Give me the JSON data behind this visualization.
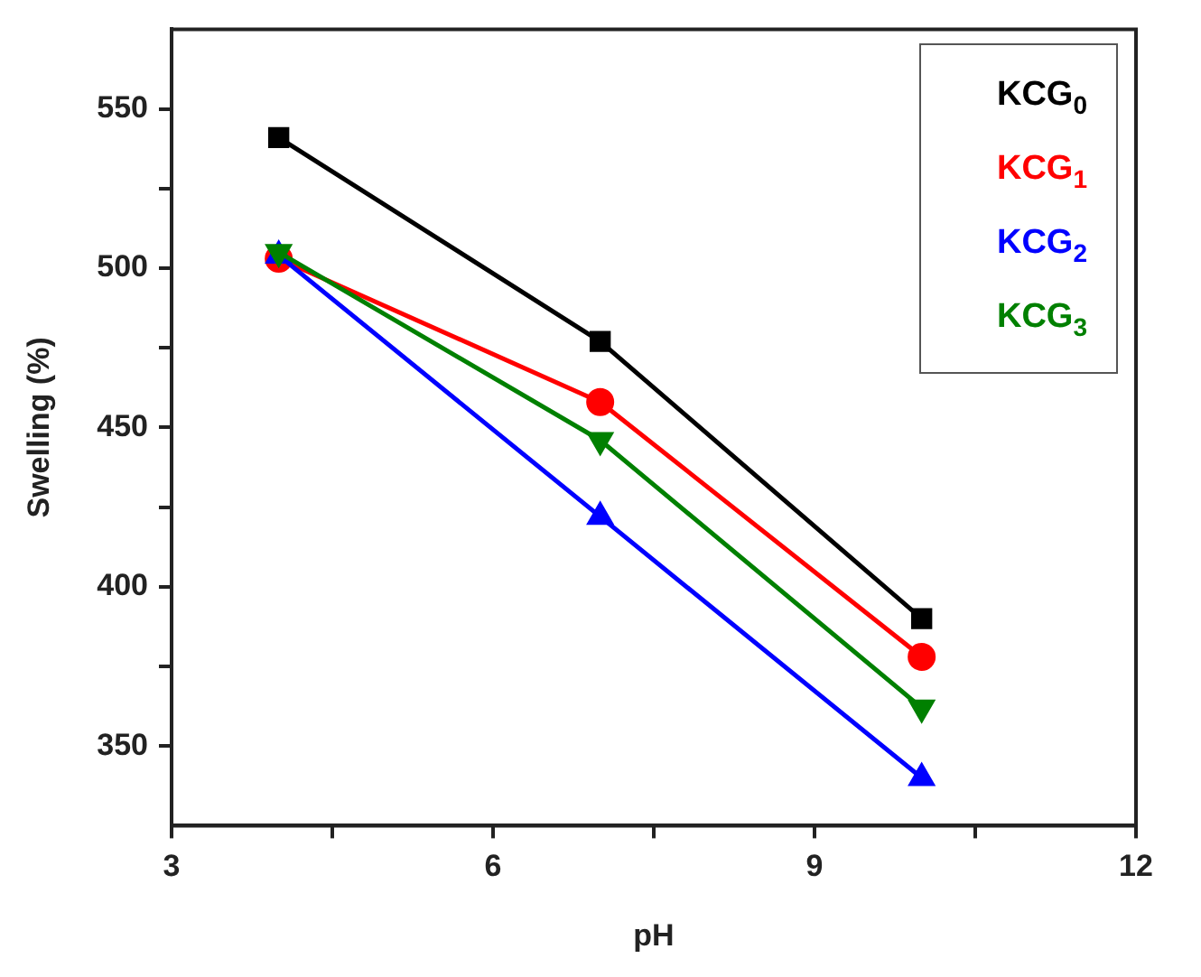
{
  "chart_data": {
    "type": "line",
    "xlabel": "pH",
    "ylabel": "Swelling (%)",
    "x": [
      4,
      7,
      10
    ],
    "series": [
      {
        "name": "KCG$_{0}$",
        "color": "#000000",
        "marker": "square",
        "values": [
          541,
          477,
          390
        ]
      },
      {
        "name": "KCG$_{1}$",
        "color": "#ff0000",
        "marker": "circle",
        "values": [
          503,
          458,
          378
        ]
      },
      {
        "name": "KCG$_{2}$",
        "color": "#0000ff",
        "marker": "triangle",
        "values": [
          504,
          422,
          340
        ]
      },
      {
        "name": "KCG$_{3}$",
        "color": "#008000",
        "marker": "triangle_down",
        "values": [
          505,
          446,
          362
        ]
      }
    ],
    "xlim": [
      3,
      12
    ],
    "xticks": [
      3,
      {
        "value": 4.5,
        "label": null
      },
      6,
      {
        "value": 7.5,
        "label": null
      },
      9,
      {
        "value": 10.5,
        "label": null
      },
      12
    ],
    "ylim": [
      325,
      575
    ],
    "yticks": [
      350,
      {
        "value": 375,
        "label": null
      },
      400,
      {
        "value": 425,
        "label": null
      },
      450,
      {
        "value": 475,
        "label": null
      },
      500,
      {
        "value": 525,
        "label": null
      },
      550
    ],
    "grid": false,
    "legend": "top right",
    "line_style": "solid"
  }
}
